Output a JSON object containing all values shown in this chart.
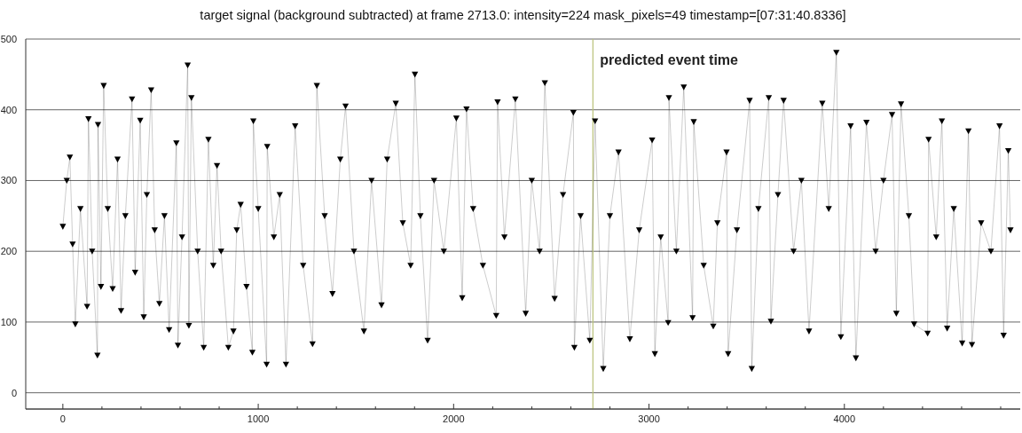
{
  "chart_data": {
    "type": "line",
    "title": "target signal (background subtracted) at frame 2713.0: intensity=224 mask_pixels=49 timestamp=[07:31:40.8336]",
    "x": [
      0,
      20,
      36,
      50,
      64,
      90,
      124,
      131,
      150,
      177,
      180,
      195,
      209,
      230,
      255,
      280,
      298,
      320,
      354,
      370,
      396,
      414,
      430,
      452,
      470,
      494,
      520,
      544,
      581,
      589,
      610,
      639,
      645,
      658,
      690,
      721,
      745,
      770,
      789,
      810,
      847,
      873,
      890,
      910,
      940,
      970,
      975,
      1000,
      1043,
      1046,
      1080,
      1110,
      1142,
      1189,
      1230,
      1278,
      1300,
      1340,
      1380,
      1420,
      1447,
      1490,
      1541,
      1580,
      1631,
      1660,
      1704,
      1740,
      1780,
      1802,
      1830,
      1867,
      1900,
      1950,
      2014,
      2044,
      2066,
      2100,
      2150,
      2218,
      2225,
      2260,
      2316,
      2369,
      2400,
      2440,
      2467,
      2517,
      2560,
      2613,
      2618,
      2650,
      2697,
      2724,
      2766,
      2800,
      2844,
      2902,
      2950,
      3016,
      3030,
      3060,
      3098,
      3102,
      3140,
      3178,
      3223,
      3229,
      3280,
      3329,
      3350,
      3397,
      3405,
      3450,
      3515,
      3526,
      3560,
      3613,
      3624,
      3660,
      3689,
      3740,
      3780,
      3819,
      3887,
      3920,
      3959,
      3982,
      4032,
      4059,
      4113,
      4160,
      4200,
      4244,
      4266,
      4290,
      4330,
      4357,
      4426,
      4431,
      4470,
      4499,
      4526,
      4560,
      4603,
      4635,
      4653,
      4700,
      4750,
      4794,
      4815,
      4839,
      4850
    ],
    "series": [
      {
        "color": "#000000",
        "values": [
          235,
          300,
          333,
          210,
          97,
          260,
          122,
          387,
          200,
          53,
          379,
          150,
          434,
          260,
          147,
          330,
          116,
          250,
          415,
          170,
          385,
          107,
          280,
          428,
          230,
          126,
          250,
          89,
          353,
          67,
          220,
          463,
          95,
          417,
          200,
          64,
          358,
          180,
          321,
          200,
          64,
          87,
          230,
          266,
          150,
          57,
          384,
          260,
          40,
          348,
          220,
          280,
          40,
          377,
          180,
          69,
          434,
          250,
          140,
          330,
          405,
          200,
          87,
          300,
          124,
          330,
          409,
          240,
          180,
          450,
          250,
          74,
          300,
          200,
          388,
          134,
          401,
          260,
          180,
          109,
          411,
          220,
          415,
          112,
          300,
          200,
          438,
          133,
          280,
          396,
          64,
          250,
          74,
          384,
          34,
          250,
          340,
          76,
          230,
          357,
          55,
          220,
          99,
          417,
          200,
          432,
          106,
          383,
          180,
          94,
          240,
          340,
          55,
          230,
          413,
          34,
          260,
          417,
          101,
          280,
          413,
          200,
          300,
          87,
          409,
          260,
          481,
          79,
          377,
          49,
          382,
          200,
          300,
          393,
          112,
          408,
          250,
          97,
          84,
          358,
          220,
          384,
          91,
          260,
          70,
          370,
          68,
          240,
          200,
          377,
          81,
          342,
          230
        ]
      }
    ],
    "xlim": [
      -190,
      4900
    ],
    "ylim": [
      -23,
      500
    ],
    "xticks": [
      0,
      {
        "value": 200,
        "label": null
      },
      {
        "value": 400,
        "label": null
      },
      {
        "value": 600,
        "label": null
      },
      {
        "value": 800,
        "label": null
      },
      1000,
      {
        "value": 1200,
        "label": null
      },
      {
        "value": 1400,
        "label": null
      },
      {
        "value": 1600,
        "label": null
      },
      {
        "value": 1800,
        "label": null
      },
      2000,
      {
        "value": 2200,
        "label": null
      },
      {
        "value": 2400,
        "label": null
      },
      {
        "value": 2600,
        "label": null
      },
      {
        "value": 2800,
        "label": null
      },
      3000,
      {
        "value": 3200,
        "label": null
      },
      {
        "value": 3400,
        "label": null
      },
      {
        "value": 3600,
        "label": null
      },
      {
        "value": 3800,
        "label": null
      },
      4000,
      {
        "value": 4200,
        "label": null
      },
      {
        "value": 4400,
        "label": null
      },
      {
        "value": 4600,
        "label": null
      },
      {
        "value": 4800,
        "label": null
      }
    ],
    "yticks": [
      0,
      100,
      200,
      300,
      400,
      500
    ],
    "grid": "y",
    "marker": "triangle",
    "line_style": "solid",
    "ref_lines": [
      {
        "axis": "x",
        "value": 2713,
        "label": "predicted event time",
        "color": "#b9c27a"
      }
    ]
  }
}
